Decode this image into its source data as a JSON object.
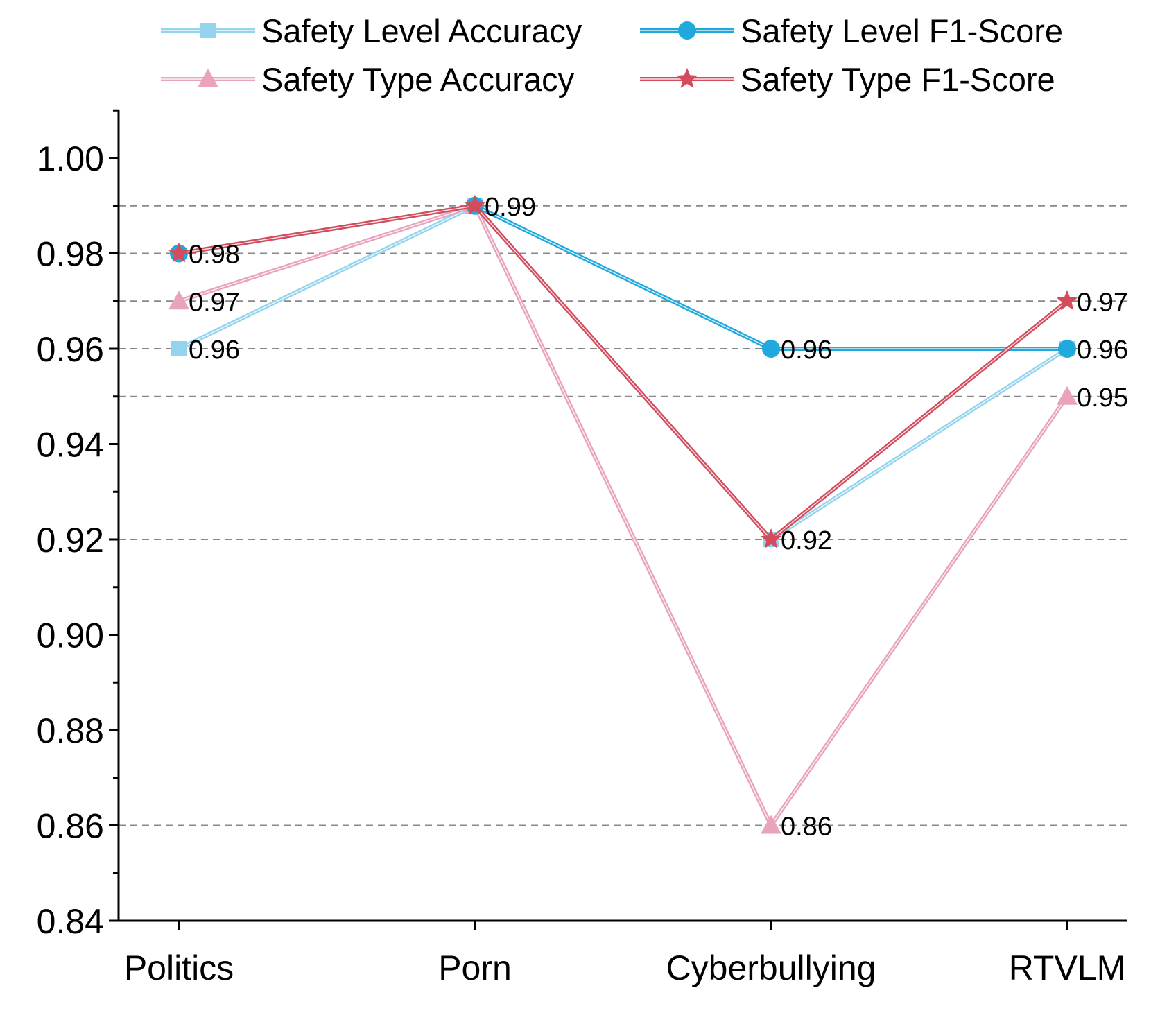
{
  "chart_data": {
    "type": "line",
    "title": "",
    "xlabel": "",
    "ylabel": "",
    "categories": [
      "Politics",
      "Porn",
      "Cyberbullying",
      "RTVLM"
    ],
    "ylim": [
      0.84,
      1.01
    ],
    "yticks": [
      "0.84",
      "0.86",
      "0.88",
      "0.90",
      "0.92",
      "0.94",
      "0.96",
      "0.98",
      "1.00"
    ],
    "reference_lines": [
      0.86,
      0.92,
      0.95,
      0.96,
      0.97,
      0.98,
      0.99
    ],
    "legend_position": "top",
    "series": [
      {
        "name": "Safety Level Accuracy",
        "values": [
          0.96,
          0.99,
          0.92,
          0.96
        ],
        "color": "#94d3ee",
        "marker": "square"
      },
      {
        "name": "Safety Level F1-Score",
        "values": [
          0.98,
          0.99,
          0.96,
          0.96
        ],
        "color": "#1fa9dc",
        "marker": "circle"
      },
      {
        "name": "Safety Type Accuracy",
        "values": [
          0.97,
          0.99,
          0.86,
          0.95
        ],
        "color": "#e9a3bd",
        "marker": "triangle"
      },
      {
        "name": "Safety Type F1-Score",
        "values": [
          0.98,
          0.99,
          0.92,
          0.97
        ],
        "color": "#d44b5c",
        "marker": "star"
      }
    ],
    "data_labels": [
      {
        "category": 0,
        "value": 0.98,
        "text": "0.98"
      },
      {
        "category": 0,
        "value": 0.97,
        "text": "0.97"
      },
      {
        "category": 0,
        "value": 0.96,
        "text": "0.96"
      },
      {
        "category": 1,
        "value": 0.99,
        "text": "0.99"
      },
      {
        "category": 2,
        "value": 0.96,
        "text": "0.96"
      },
      {
        "category": 2,
        "value": 0.92,
        "text": "0.92"
      },
      {
        "category": 2,
        "value": 0.86,
        "text": "0.86"
      },
      {
        "category": 3,
        "value": 0.97,
        "text": "0.97"
      },
      {
        "category": 3,
        "value": 0.96,
        "text": "0.96"
      },
      {
        "category": 3,
        "value": 0.95,
        "text": "0.95"
      }
    ]
  }
}
